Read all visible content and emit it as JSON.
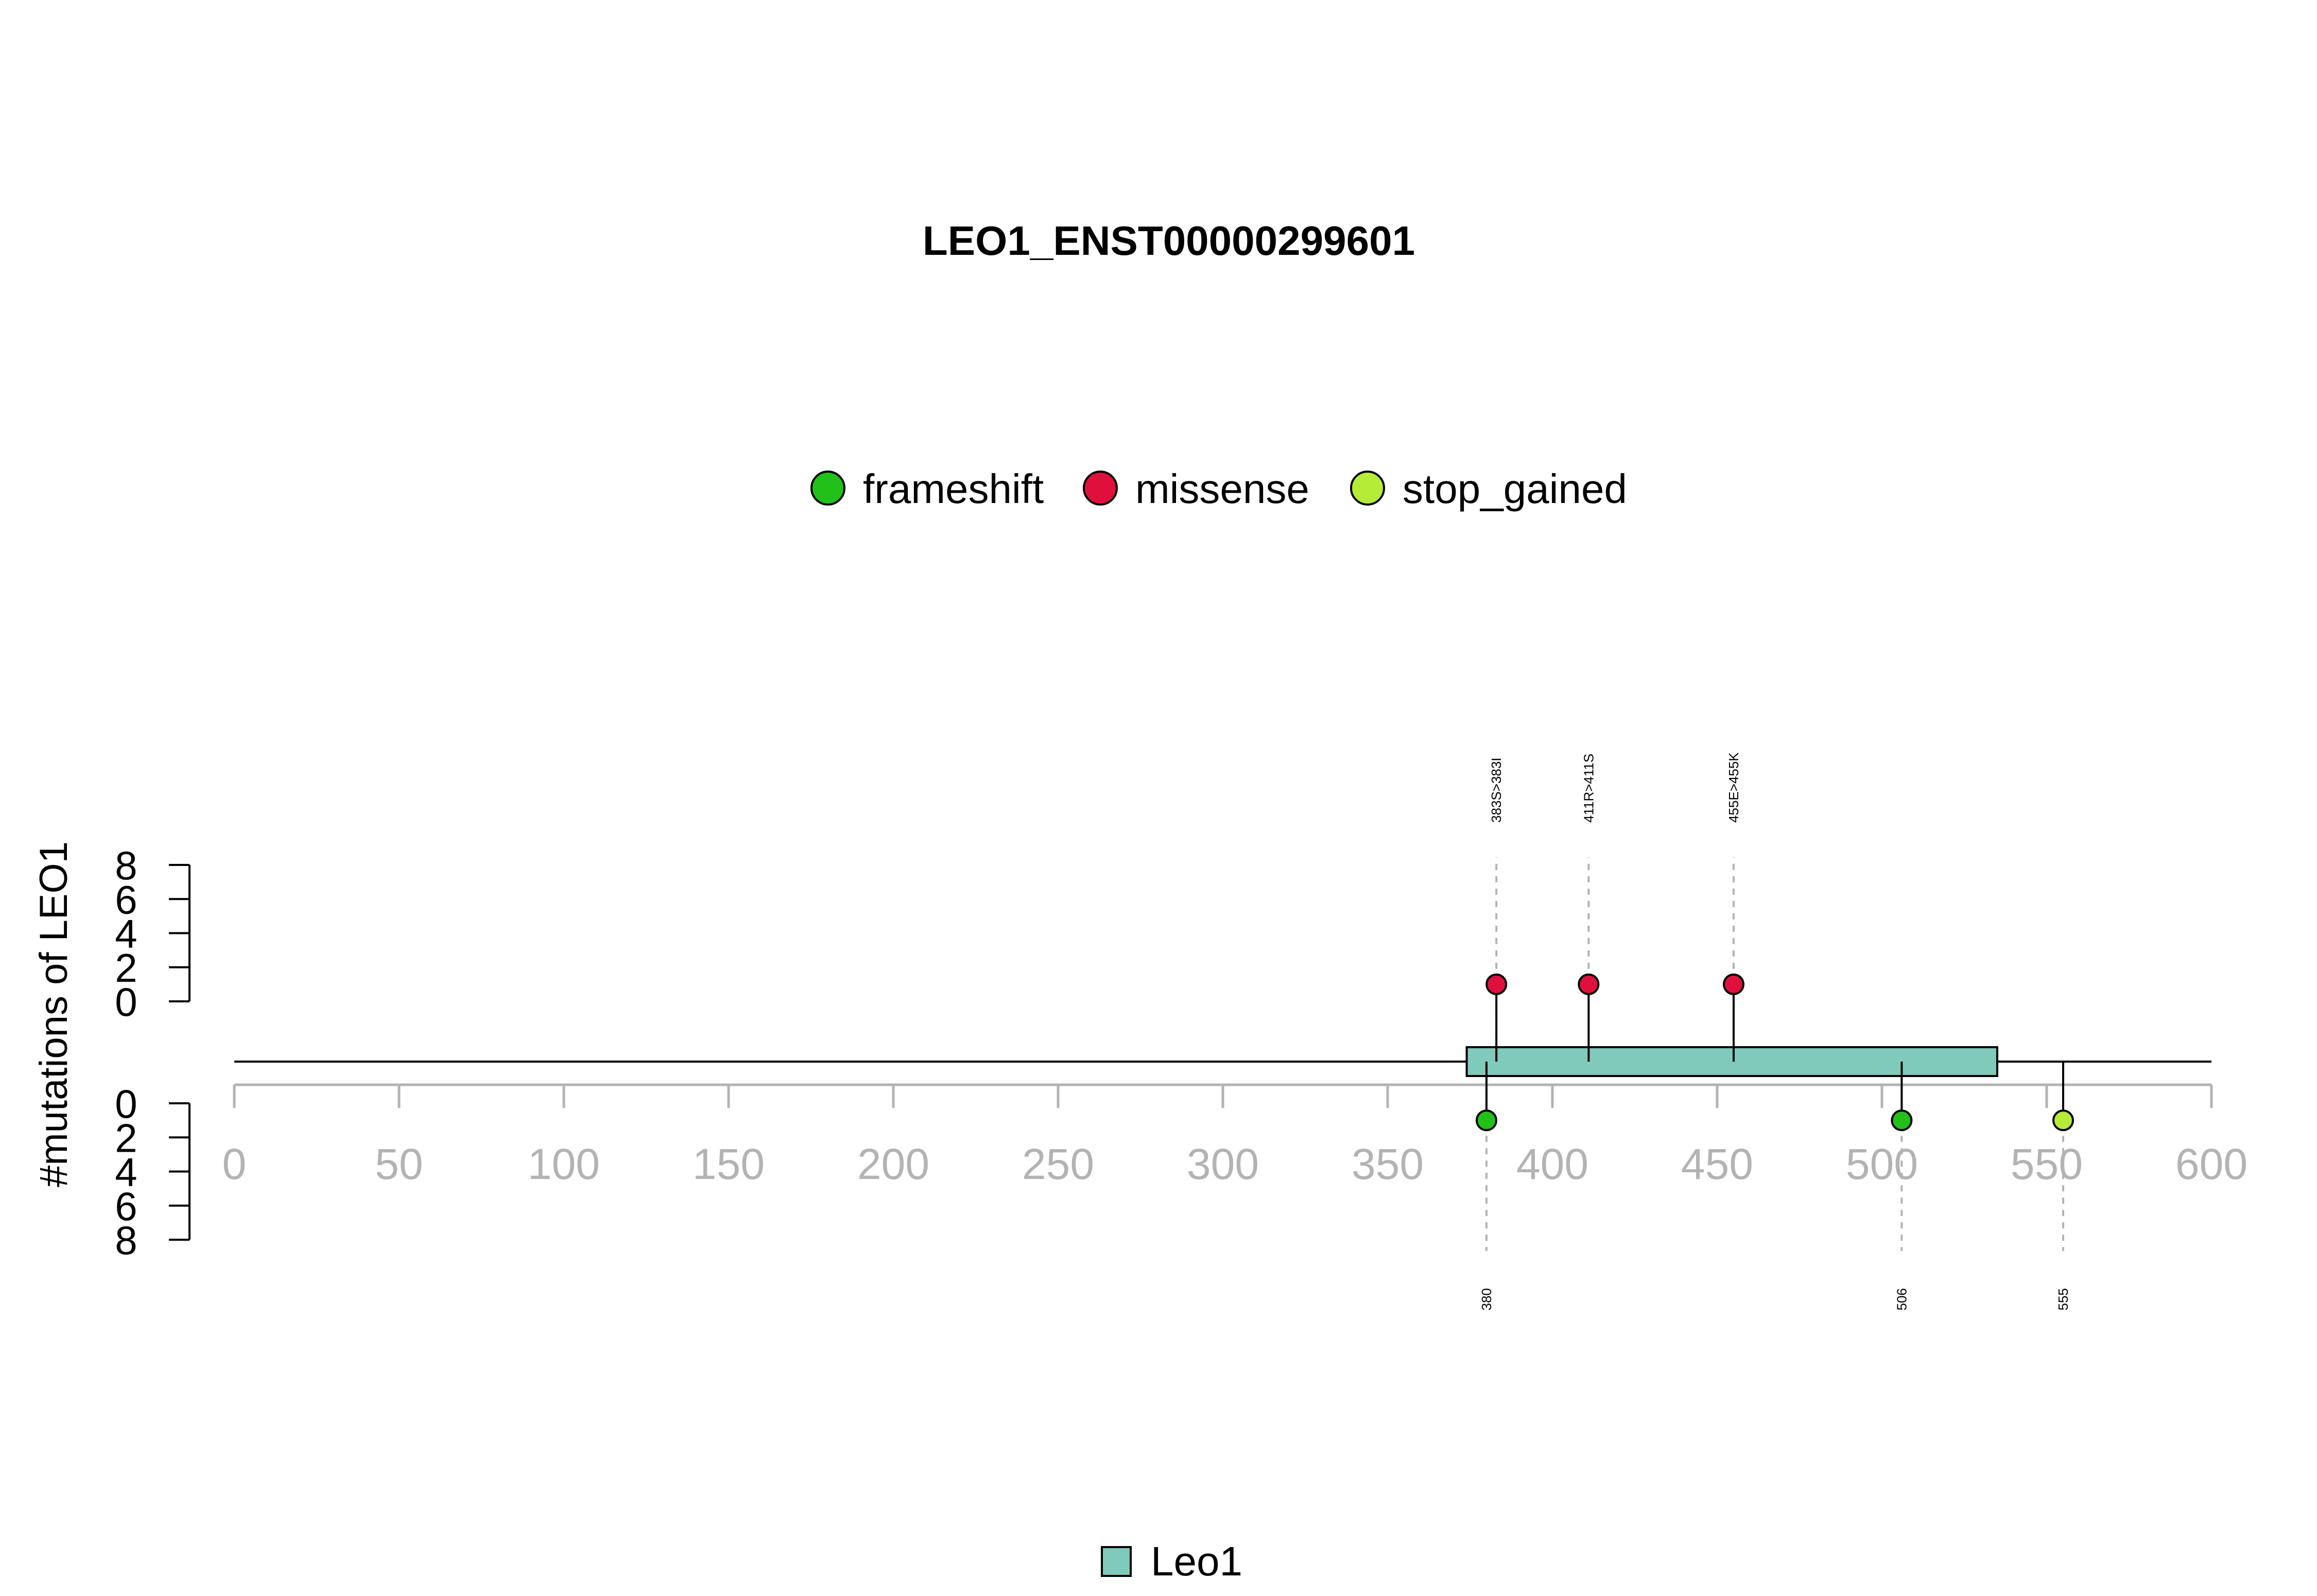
{
  "chart_data": {
    "type": "lollipop",
    "title": "LEO1_ENST00000299601",
    "ylabel": "#mutations of LEO1",
    "xlim": [
      0,
      600
    ],
    "x_ticks": [
      0,
      50,
      100,
      150,
      200,
      250,
      300,
      350,
      400,
      450,
      500,
      550,
      600
    ],
    "y_ticks_top": [
      0,
      2,
      4,
      6,
      8
    ],
    "y_ticks_bottom": [
      0,
      2,
      4,
      6,
      8
    ],
    "ylim": [
      0,
      8
    ],
    "protein_length": 600,
    "domains": [
      {
        "name": "Leo1",
        "start": 374,
        "end": 535,
        "color": "#7fcabb"
      }
    ],
    "legend": [
      {
        "name": "frameshift",
        "color": "#22c11a"
      },
      {
        "name": "missense",
        "color": "#e0103c"
      },
      {
        "name": "stop_gained",
        "color": "#b4ec38"
      }
    ],
    "mutations_top": [
      {
        "position": 383,
        "count": 1,
        "type": "missense",
        "label": "383S>383I"
      },
      {
        "position": 411,
        "count": 1,
        "type": "missense",
        "label": "411R>411S"
      },
      {
        "position": 455,
        "count": 1,
        "type": "missense",
        "label": "455E>455K"
      }
    ],
    "mutations_bottom": [
      {
        "position": 380,
        "count": 1,
        "type": "frameshift",
        "label": "380"
      },
      {
        "position": 506,
        "count": 1,
        "type": "frameshift",
        "label": "506"
      },
      {
        "position": 555,
        "count": 1,
        "type": "stop_gained",
        "label": "555"
      }
    ]
  }
}
